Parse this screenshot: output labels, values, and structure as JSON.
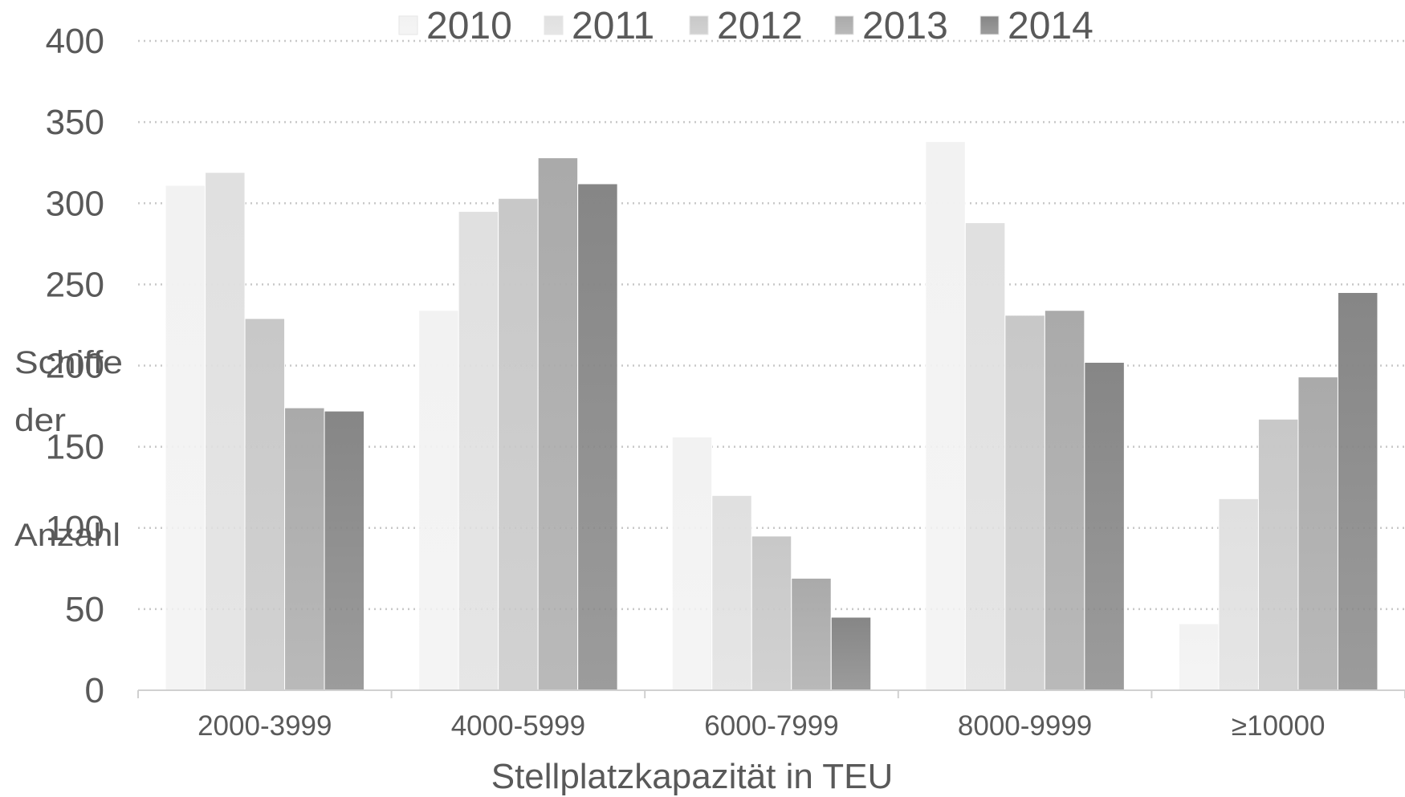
{
  "chart_data": {
    "type": "bar",
    "categories": [
      "2000-3999",
      "4000-5999",
      "6000-7999",
      "8000-9999",
      "≥10000"
    ],
    "series": [
      {
        "name": "2010",
        "values": [
          311,
          234,
          156,
          338,
          41
        ],
        "color": "#f2f2f2"
      },
      {
        "name": "2011",
        "values": [
          319,
          295,
          120,
          288,
          118
        ],
        "color": "#e0e0e0"
      },
      {
        "name": "2012",
        "values": [
          229,
          303,
          95,
          231,
          167
        ],
        "color": "#c8c8c8"
      },
      {
        "name": "2013",
        "values": [
          174,
          328,
          69,
          234,
          193
        ],
        "color": "#aaaaaa"
      },
      {
        "name": "2014",
        "values": [
          172,
          312,
          45,
          202,
          245
        ],
        "color": "#868686"
      }
    ],
    "xlabel": "Stellplatzkapazität in TEU",
    "ylabel_lines": [
      "Schiffe",
      "der",
      "Anzahl"
    ],
    "ylim": [
      0,
      400
    ],
    "yticks": [
      0,
      50,
      100,
      150,
      200,
      250,
      300,
      350,
      400
    ],
    "grid": true,
    "grid_style": "dotted",
    "legend_position": "top"
  }
}
